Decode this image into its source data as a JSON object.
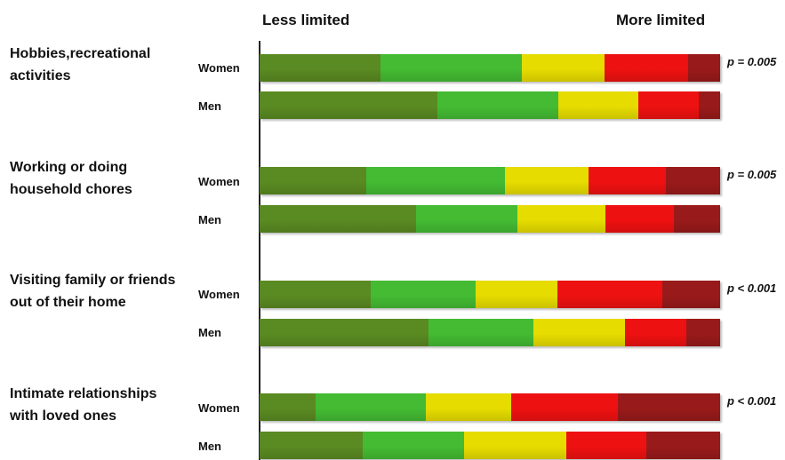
{
  "chart_data": {
    "type": "bar",
    "stacked": true,
    "orientation": "horizontal",
    "scale_labels": {
      "left": "Less limited",
      "right": "More limited"
    },
    "level_colors": [
      "#5a8a22",
      "#44bb33",
      "#e6dc00",
      "#ee1111",
      "#991a1a"
    ],
    "categories": [
      {
        "label": "Hobbies,recreational\nactivities",
        "p_value": "p = 0.005",
        "groups": [
          {
            "name": "Women",
            "values": [
              26.3,
              30.7,
              18.0,
              18.0,
              7.0
            ]
          },
          {
            "name": "Men",
            "values": [
              38.6,
              26.3,
              17.4,
              13.1,
              4.6
            ]
          }
        ]
      },
      {
        "label": "Working or doing\nhousehold chores",
        "p_value": "p = 0.005",
        "groups": [
          {
            "name": "Women",
            "values": [
              23.2,
              30.0,
              18.3,
              16.8,
              11.7
            ]
          },
          {
            "name": "Men",
            "values": [
              34.0,
              22.0,
              19.1,
              14.9,
              10.0
            ]
          }
        ]
      },
      {
        "label": "Visiting family or friends\nout of their home",
        "p_value": "p < 0.001",
        "groups": [
          {
            "name": "Women",
            "values": [
              24.1,
              22.8,
              17.8,
              22.8,
              12.5
            ]
          },
          {
            "name": "Men",
            "values": [
              36.7,
              22.8,
              19.9,
              13.3,
              7.3
            ]
          }
        ]
      },
      {
        "label": "Intimate relationships\nwith loved ones",
        "p_value": "p < 0.001",
        "groups": [
          {
            "name": "Women",
            "values": [
              12.2,
              23.9,
              18.5,
              23.2,
              22.2
            ]
          },
          {
            "name": "Men",
            "values": [
              22.4,
              22.0,
              22.2,
              17.4,
              16.0
            ]
          }
        ]
      }
    ]
  }
}
